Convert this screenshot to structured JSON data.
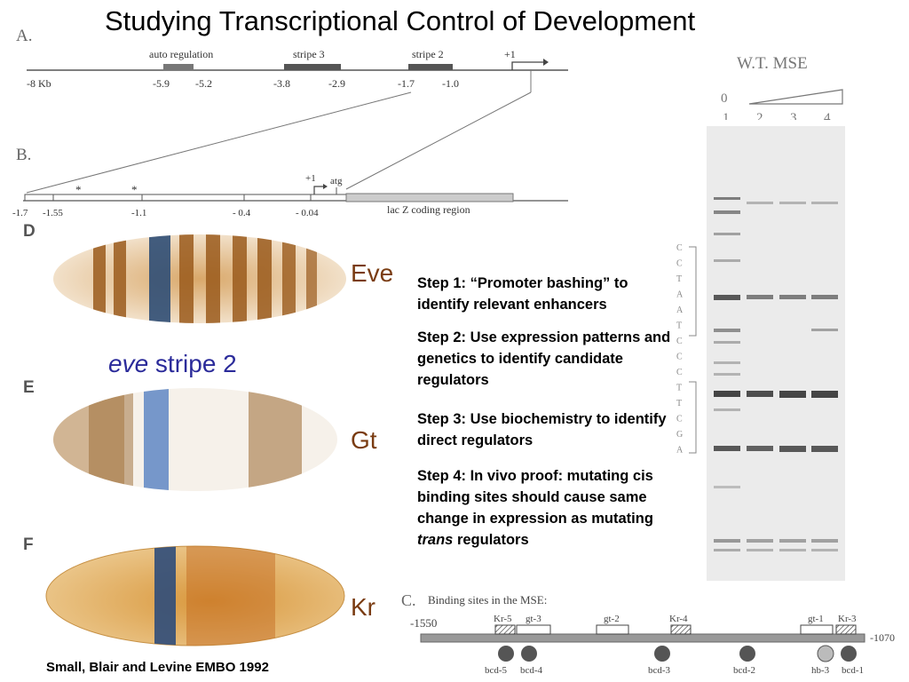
{
  "title": "Studying Transcriptional Control of Development",
  "panel_a": {
    "letter": "A.",
    "regions": [
      {
        "label": "auto regulation",
        "coords": [
          "-5.9",
          "-5.2"
        ]
      },
      {
        "label": "stripe 3",
        "coords": [
          "-3.8",
          "-2.9"
        ]
      },
      {
        "label": "stripe 2",
        "coords": [
          "-1.7",
          "-1.0"
        ]
      }
    ],
    "start_label": "-8 Kb",
    "tss_label": "+1"
  },
  "panel_b": {
    "letter": "B.",
    "ticks": [
      "-1.7",
      "-1.55",
      "-1.1",
      "- 0.4",
      "- 0.04"
    ],
    "tss_label": "+1",
    "atg_label": "atg",
    "coding_label": "lac Z coding region",
    "asterisk": "*"
  },
  "gel": {
    "title": "W.T. MSE",
    "zero_label": "0",
    "lanes": [
      "1",
      "2",
      "3",
      "4"
    ],
    "sequence": [
      "C",
      "C",
      "T",
      "A",
      "A",
      "T",
      "C",
      "C",
      "C",
      "T",
      "T",
      "C",
      "G",
      "A"
    ]
  },
  "embryos": {
    "d": {
      "letter": "D",
      "gene": "Eve"
    },
    "e": {
      "letter": "E",
      "gene": "Gt"
    },
    "f": {
      "letter": "F",
      "gene": "Kr"
    }
  },
  "stripe_label": {
    "italic": "eve",
    "rest": " stripe 2"
  },
  "steps": {
    "step1": "Step 1:  “Promoter bashing” to identify relevant enhancers",
    "step2": "Step 2:  Use expression patterns and genetics to identify candidate regulators",
    "step3": "Step 3:  Use biochemistry to identify direct regulators",
    "step4_a": "Step 4:  In vivo proof: mutating cis binding sites should cause same change in expression as mutating ",
    "step4_italic": "trans",
    "step4_b": " regulators"
  },
  "panel_c": {
    "letter": "C.",
    "title": "Binding sites in the MSE:",
    "left_coord": "-1550",
    "right_coord": "-1070",
    "top_sites": [
      "Kr-5",
      "gt-3",
      "gt-2",
      "Kr-4",
      "gt-1",
      "Kr-3"
    ],
    "bottom_sites": [
      "bcd-5",
      "bcd-4",
      "bcd-3",
      "bcd-2",
      "hb-3",
      "bcd-1"
    ]
  },
  "citation": "Small, Blair and Levine EMBO 1992"
}
